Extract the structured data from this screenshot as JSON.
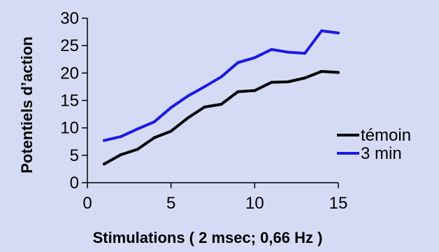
{
  "chart_data": {
    "type": "line",
    "title": "",
    "xlabel": "Stimulations ( 2 msec; 0,66 Hz )",
    "ylabel": "Potentiels d’action",
    "xlim": [
      0,
      15
    ],
    "ylim": [
      0,
      30
    ],
    "xticks": [
      0,
      5,
      10,
      15
    ],
    "yticks": [
      0,
      5,
      10,
      15,
      20,
      25,
      30
    ],
    "xtick_labels": [
      "0",
      "5",
      "10",
      "15"
    ],
    "ytick_labels": [
      "0",
      "5",
      "10",
      "15",
      "20",
      "25",
      "30"
    ],
    "grid": false,
    "legend_position": "right",
    "x": [
      1,
      2,
      3,
      4,
      5,
      6,
      7,
      8,
      9,
      10,
      11,
      12,
      13,
      14,
      15
    ],
    "series": [
      {
        "name": "témoin",
        "color": "#000000",
        "values": [
          3.4,
          5.1,
          6.1,
          8.2,
          9.4,
          11.8,
          13.8,
          14.3,
          16.6,
          16.8,
          18.3,
          18.4,
          19.1,
          20.3,
          20.1
        ]
      },
      {
        "name": "3 min",
        "color": "#1a1ae6",
        "values": [
          7.7,
          8.4,
          9.8,
          11.1,
          13.7,
          15.8,
          17.5,
          19.3,
          21.9,
          22.8,
          24.3,
          23.8,
          23.6,
          27.7,
          27.3
        ]
      }
    ]
  }
}
